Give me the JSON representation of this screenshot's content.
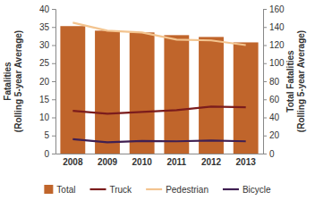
{
  "chart_data": {
    "type": "bar",
    "categories": [
      "2008",
      "2009",
      "2010",
      "2011",
      "2012",
      "2013"
    ],
    "ylabel": [
      "Fatalities",
      "(Rolling 5-year Average)"
    ],
    "y2label": [
      "Total Fatalities",
      "(Rolling 5-year Average)"
    ],
    "ylim": [
      0,
      40
    ],
    "yticks": [
      0,
      5,
      10,
      15,
      20,
      25,
      30,
      35,
      40
    ],
    "y2lim": [
      0,
      160
    ],
    "y2ticks": [
      0,
      20,
      40,
      60,
      80,
      100,
      120,
      140,
      160
    ],
    "grid": false,
    "legend": "bottom",
    "series": [
      {
        "name": "Total",
        "type": "bar",
        "axis": "y2",
        "color": "#c0652b",
        "values": [
          141,
          136,
          134,
          131,
          129,
          123
        ]
      },
      {
        "name": "Truck",
        "type": "line",
        "color": "#7b1c1c",
        "values": [
          11.8,
          11,
          11.5,
          12,
          13,
          12.8
        ]
      },
      {
        "name": "Pedestrian",
        "type": "line",
        "color": "#f3c48f",
        "values": [
          36.2,
          34,
          33.5,
          31.5,
          31.3,
          30
        ]
      },
      {
        "name": "Bicycle",
        "type": "line",
        "color": "#3f1f52",
        "values": [
          4,
          3.1,
          3.5,
          3.4,
          3.6,
          3.4
        ]
      }
    ]
  }
}
